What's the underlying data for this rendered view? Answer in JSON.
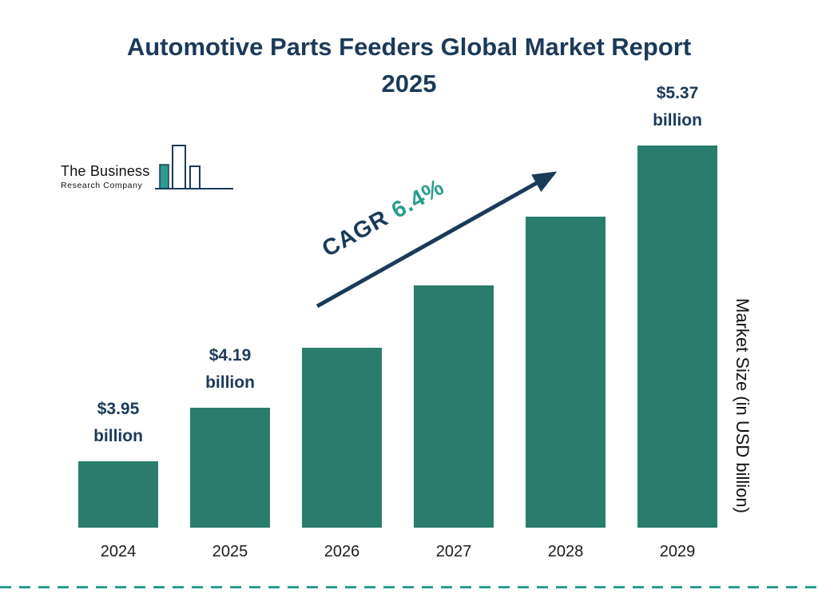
{
  "title": "Automotive Parts Feeders Global Market Report 2025",
  "logo": {
    "line1": "The Business",
    "line2": "Research Company"
  },
  "cagr": {
    "label": "CAGR",
    "value": "6.4%"
  },
  "chart_data": {
    "type": "bar",
    "title": "Automotive Parts Feeders Global Market Report 2025",
    "categories": [
      "2024",
      "2025",
      "2026",
      "2027",
      "2028",
      "2029"
    ],
    "values": [
      3.95,
      4.19,
      4.46,
      4.74,
      5.05,
      5.37
    ],
    "labeled_values": [
      {
        "index": 0,
        "line1": "$3.95",
        "line2": "billion"
      },
      {
        "index": 1,
        "line1": "$4.19",
        "line2": "billion"
      },
      {
        "index": 5,
        "line1": "$5.37",
        "line2": "billion"
      }
    ],
    "cagr": "6.4%",
    "xlabel": "",
    "ylabel": "Market Size (in USD billion)",
    "ylim": [
      3.65,
      5.45
    ],
    "bar_color": "#2a7d6d",
    "grid": false,
    "legend": false
  },
  "colors": {
    "navy": "#1b3a5a",
    "teal": "#2a7d6d",
    "accent_teal": "#2a9d8f"
  }
}
